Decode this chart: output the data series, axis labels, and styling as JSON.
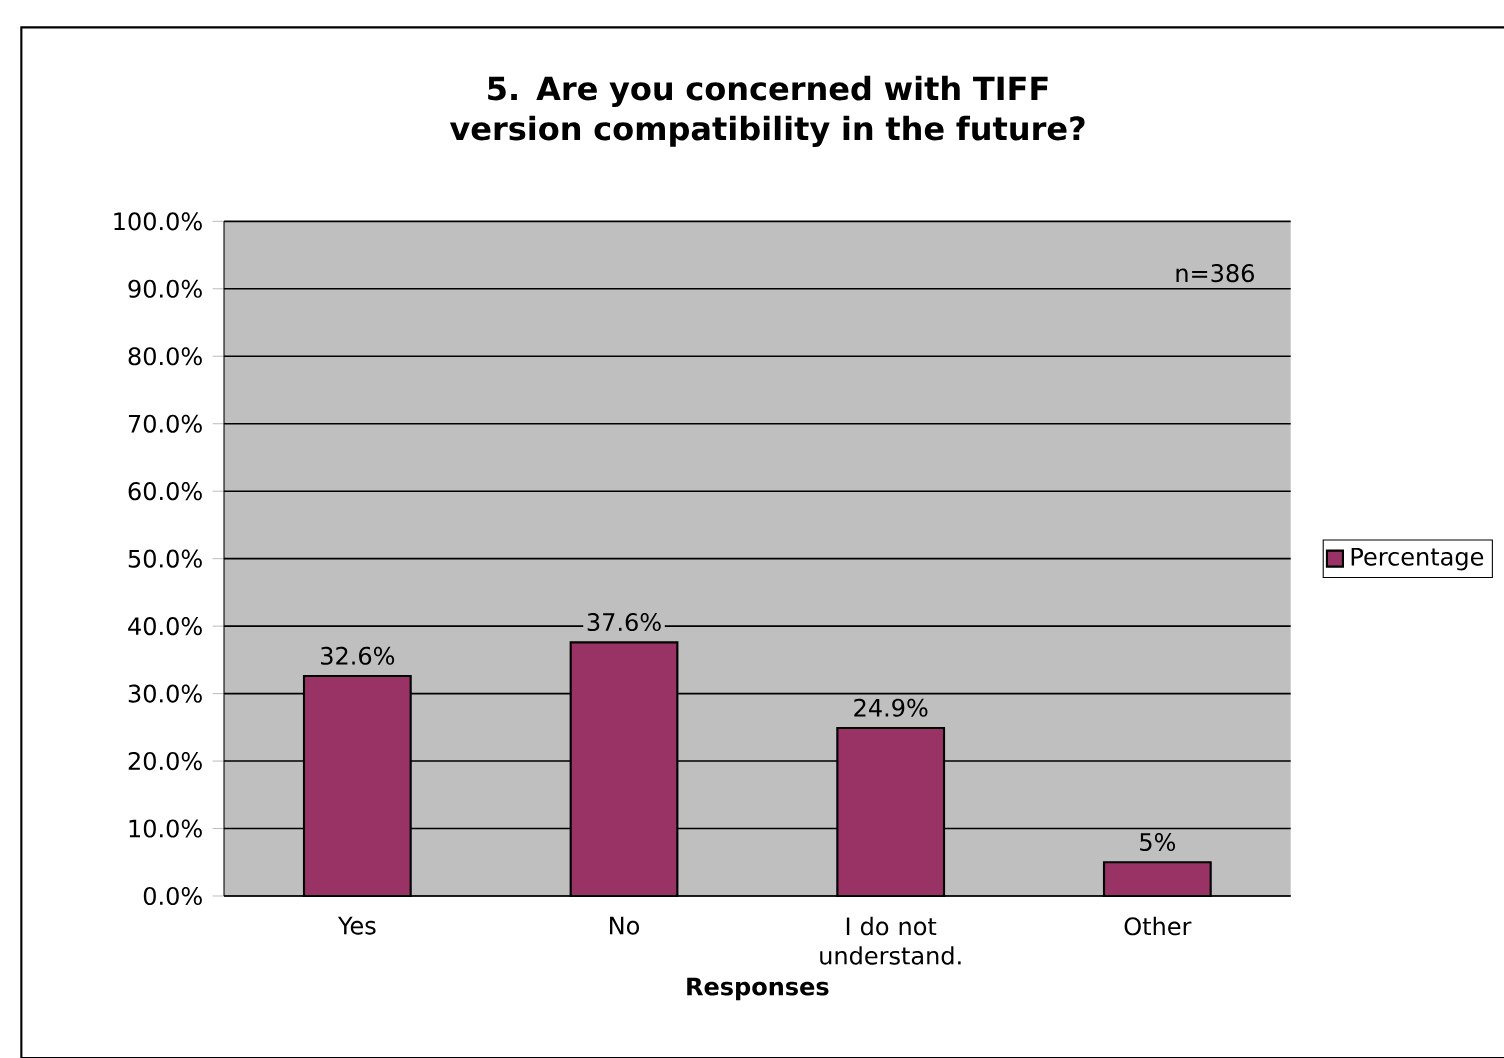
{
  "chart_data": {
    "type": "bar",
    "title": "5. Are you concerned with TIFF version compatibility in the future?",
    "xlabel": "Responses",
    "categories": [
      "Yes",
      "No",
      "I do not understand.",
      "Other"
    ],
    "series": [
      {
        "name": "Percentage",
        "color": "#993366",
        "values": [
          32.6,
          37.6,
          24.9,
          5
        ],
        "value_labels": [
          "32.6%",
          "37.6%",
          "24.9%",
          "5%"
        ]
      }
    ],
    "ylim": [
      0,
      100
    ],
    "yticks": [
      {
        "value": 0,
        "label": "0.0%"
      },
      {
        "value": 10,
        "label": "10.0%"
      },
      {
        "value": 20,
        "label": "20.0%"
      },
      {
        "value": 30,
        "label": "30.0%"
      },
      {
        "value": 40,
        "label": "40.0%"
      },
      {
        "value": 50,
        "label": "50.0%"
      },
      {
        "value": 60,
        "label": "60.0%"
      },
      {
        "value": 70,
        "label": "70.0%"
      },
      {
        "value": 80,
        "label": "80.0%"
      },
      {
        "value": 90,
        "label": "90.0%"
      },
      {
        "value": 100,
        "label": "100.0%"
      }
    ],
    "annotations": [
      "n=386"
    ],
    "grid": "y",
    "legend": "right"
  }
}
